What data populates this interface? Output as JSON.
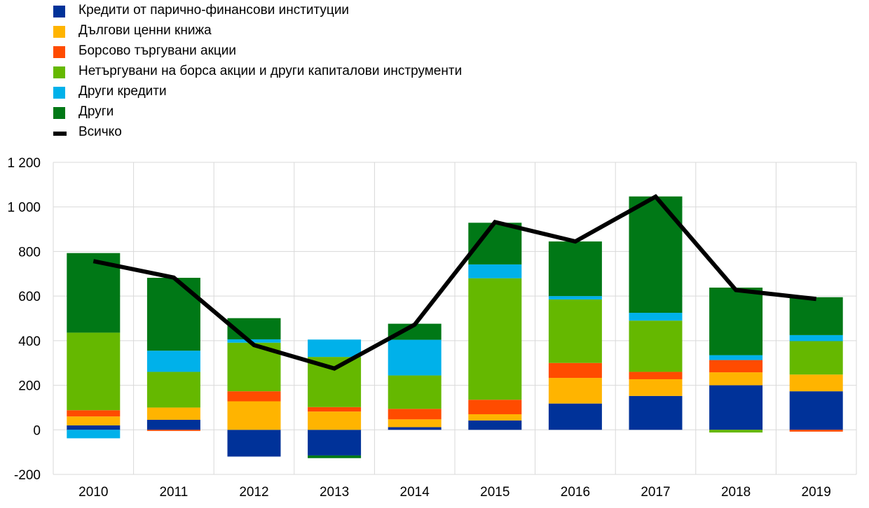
{
  "chart_data": {
    "type": "bar",
    "stacked": true,
    "categories": [
      "2010",
      "2011",
      "2012",
      "2013",
      "2014",
      "2015",
      "2016",
      "2017",
      "2018",
      "2019"
    ],
    "ylim": [
      -200,
      1200
    ],
    "yticks": [
      -200,
      0,
      200,
      400,
      600,
      800,
      1000,
      1200
    ],
    "ytick_labels": [
      "-200",
      "0",
      "200",
      "400",
      "600",
      "800",
      "1 000",
      "1 200"
    ],
    "grid": true,
    "legend_position": "top-left",
    "series": [
      {
        "name": "Кредити от парично-финансови институции",
        "color": "#003299",
        "values": [
          20,
          45,
          -120,
          -115,
          12,
          42,
          118,
          152,
          200,
          173
        ]
      },
      {
        "name": "Дългови ценни книжа",
        "color": "#FFB400",
        "values": [
          40,
          55,
          128,
          82,
          35,
          28,
          115,
          75,
          58,
          75
        ]
      },
      {
        "name": "Борсово търгувани акции",
        "color": "#FF4B00",
        "values": [
          28,
          -5,
          45,
          20,
          47,
          65,
          67,
          33,
          55,
          -8
        ]
      },
      {
        "name": "Нетъргувани на борса акции и други капиталови инструменти",
        "color": "#65B800",
        "values": [
          348,
          160,
          218,
          225,
          150,
          545,
          285,
          230,
          -12,
          150
        ]
      },
      {
        "name": "Други кредити",
        "color": "#00B1EA",
        "values": [
          -38,
          95,
          15,
          78,
          160,
          62,
          15,
          35,
          22,
          27
        ]
      },
      {
        "name": "Други",
        "color": "#007816",
        "values": [
          357,
          327,
          95,
          -12,
          72,
          187,
          245,
          522,
          303,
          170
        ]
      }
    ],
    "line": {
      "name": "Всичко",
      "color": "#000000",
      "values": [
        757,
        683,
        380,
        275,
        472,
        932,
        845,
        1046,
        627,
        587
      ]
    }
  }
}
